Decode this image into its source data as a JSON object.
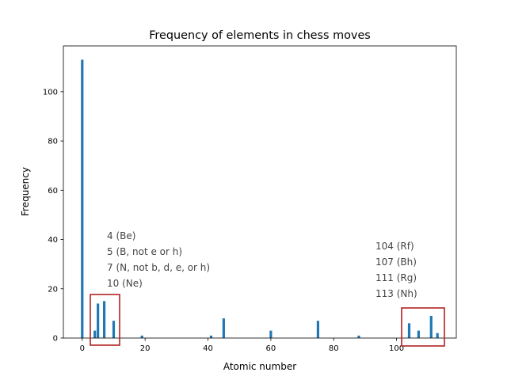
{
  "chart_data": {
    "type": "bar",
    "title": "Frequency of elements in chess moves",
    "xlabel": "Atomic number",
    "ylabel": "Frequency",
    "xlim": [
      -6,
      119
    ],
    "ylim": [
      0,
      118.6
    ],
    "xticks": [
      0,
      20,
      40,
      60,
      80,
      100
    ],
    "yticks": [
      0,
      20,
      40,
      60,
      80,
      100
    ],
    "bar_color": "#1f77b4",
    "box_color": "#b22222",
    "grid": false,
    "x": [
      0,
      4,
      5,
      7,
      10,
      19,
      41,
      45,
      60,
      75,
      88,
      104,
      107,
      111,
      113
    ],
    "values": [
      113,
      3,
      14,
      15,
      7,
      1,
      1,
      8,
      3,
      7,
      1,
      6,
      3,
      9,
      2
    ],
    "annotations": {
      "left": [
        "4 (Be)",
        "5 (B, not e or h)",
        "7 (N, not b, d, e, or h)",
        "10 (Ne)"
      ],
      "right": [
        "104 (Rf)",
        "107 (Bh)",
        "111 (Rg)",
        "113 (Nh)"
      ]
    }
  }
}
